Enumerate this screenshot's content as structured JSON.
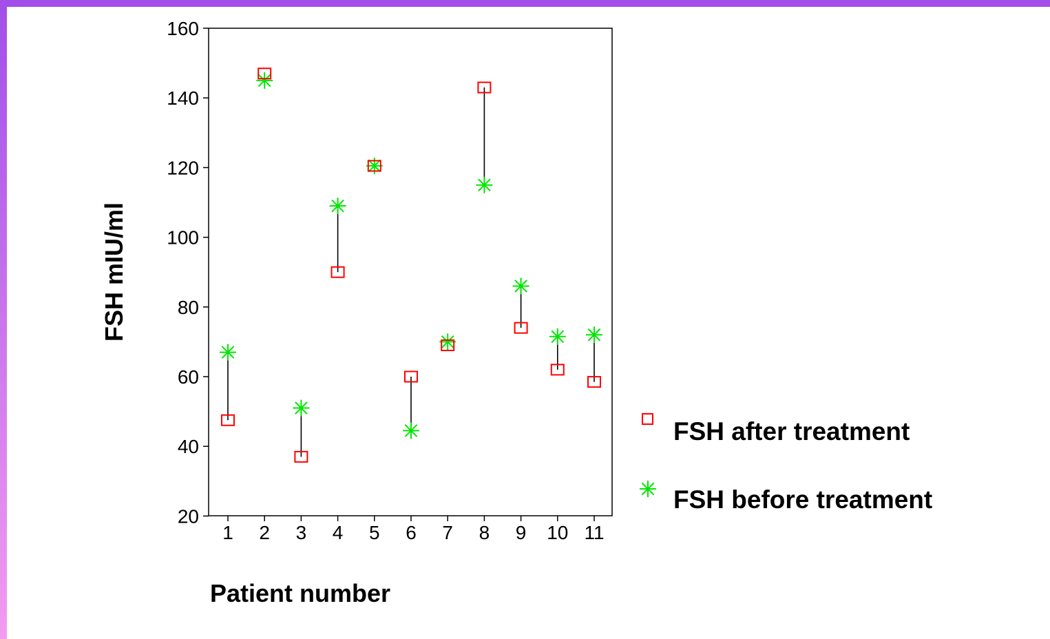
{
  "colors": {
    "frame_top": "#a14fe8",
    "frame_left_top": "#a14fe8",
    "frame_left_bottom": "#f29cf0",
    "after_marker": "#ff0000",
    "before_marker": "#00e600",
    "connector": "#000000"
  },
  "chart_data": {
    "type": "scatter",
    "title": "",
    "xlabel": "Patient number",
    "ylabel": "FSH mIU/ml",
    "ylim": [
      20,
      160
    ],
    "yticks": [
      20,
      40,
      60,
      80,
      100,
      120,
      140,
      160
    ],
    "categories": [
      "1",
      "2",
      "3",
      "4",
      "5",
      "6",
      "7",
      "8",
      "9",
      "10",
      "11"
    ],
    "grid": false,
    "legend_position": "right",
    "series": [
      {
        "name": "FSH after treatment",
        "marker": "square-icon",
        "color": "#ff0000",
        "values": [
          47.5,
          147,
          37,
          90,
          120.5,
          60,
          69,
          143,
          74,
          62,
          58.5
        ]
      },
      {
        "name": "FSH before treatment",
        "marker": "asterisk-icon",
        "color": "#00e600",
        "values": [
          67,
          145,
          51,
          109,
          120.5,
          44.5,
          70,
          115,
          86,
          71.5,
          72
        ]
      }
    ],
    "connectors": "vertical line between before and after value for each patient"
  }
}
